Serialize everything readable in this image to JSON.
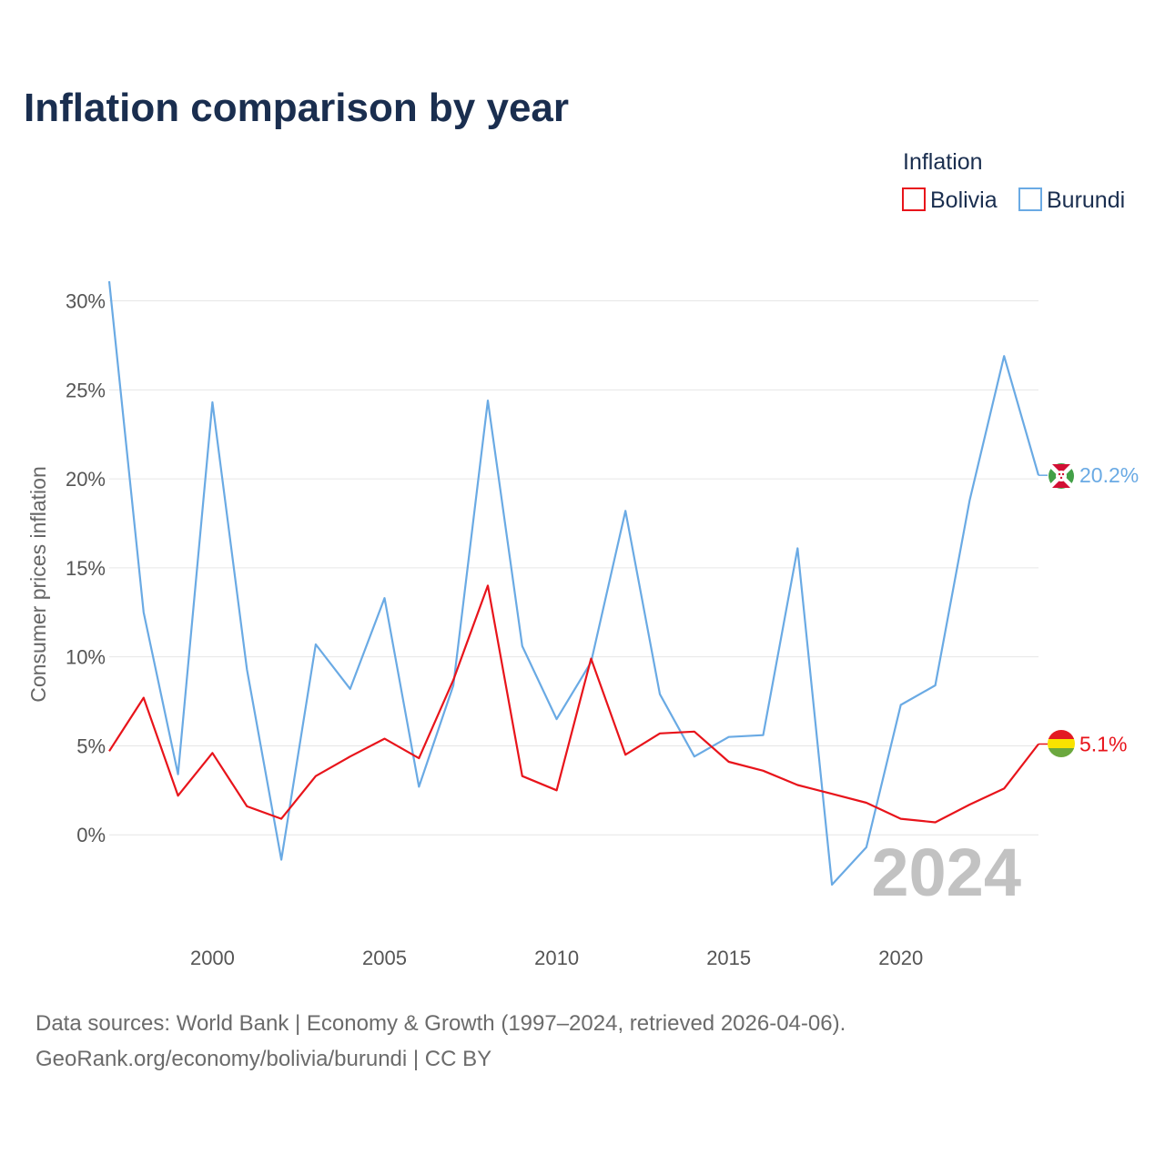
{
  "title": "Inflation comparison by year",
  "legend": {
    "title": "Inflation",
    "items": [
      {
        "name": "Bolivia",
        "color": "#e8141b"
      },
      {
        "name": "Burundi",
        "color": "#6aaae4"
      }
    ]
  },
  "year_watermark": "2024",
  "source": {
    "line1": "Data sources: World Bank | Economy & Growth (1997–2024, retrieved 2026-04-06).",
    "line2": "GeoRank.org/economy/bolivia/burundi | CC BY"
  },
  "chart_data": {
    "type": "line",
    "title": "Inflation comparison by year",
    "xlabel": "",
    "ylabel": "Consumer prices inflation",
    "xlim": [
      1997,
      2024
    ],
    "ylim": [
      -5,
      31
    ],
    "x_ticks": [
      2000,
      2005,
      2010,
      2015,
      2020
    ],
    "x_tick_labels": [
      "2000",
      "2005",
      "2010",
      "2015",
      "2020"
    ],
    "y_ticks": [
      0,
      5,
      10,
      15,
      20,
      25,
      30
    ],
    "y_tick_labels": [
      "0%",
      "5%",
      "10%",
      "15%",
      "20%",
      "25%",
      "30%"
    ],
    "x": [
      1997,
      1998,
      1999,
      2000,
      2001,
      2002,
      2003,
      2004,
      2005,
      2006,
      2007,
      2008,
      2009,
      2010,
      2011,
      2012,
      2013,
      2014,
      2015,
      2016,
      2017,
      2018,
      2019,
      2020,
      2021,
      2022,
      2023,
      2024
    ],
    "series": [
      {
        "name": "Bolivia",
        "color": "#e8141b",
        "values": [
          4.7,
          7.7,
          2.2,
          4.6,
          1.6,
          0.9,
          3.3,
          4.4,
          5.4,
          4.3,
          8.7,
          14.0,
          3.3,
          2.5,
          9.9,
          4.5,
          5.7,
          5.8,
          4.1,
          3.6,
          2.8,
          2.3,
          1.8,
          0.9,
          0.7,
          1.7,
          2.6,
          5.1
        ],
        "end_label": "5.1%"
      },
      {
        "name": "Burundi",
        "color": "#6aaae4",
        "values": [
          31.1,
          12.5,
          3.4,
          24.3,
          9.3,
          -1.4,
          10.7,
          8.2,
          13.3,
          2.7,
          8.4,
          24.4,
          10.6,
          6.5,
          9.7,
          18.2,
          7.9,
          4.4,
          5.5,
          5.6,
          16.1,
          -2.8,
          -0.7,
          7.3,
          8.4,
          18.8,
          26.9,
          20.2
        ],
        "end_label": "20.2%"
      }
    ]
  }
}
